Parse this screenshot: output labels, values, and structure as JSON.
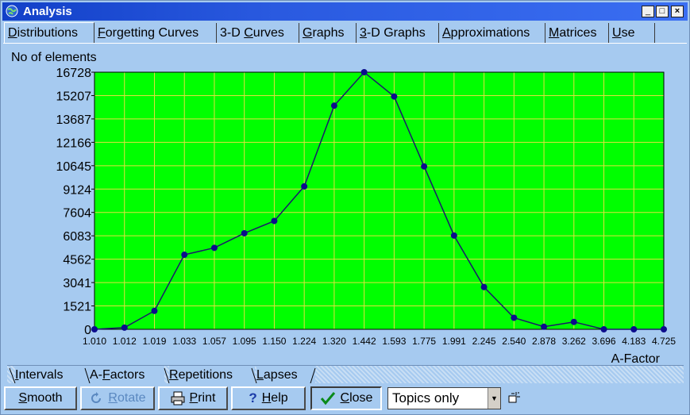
{
  "window": {
    "title": "Analysis",
    "controls": {
      "minimize": "_",
      "maximize": "□",
      "close": "×"
    }
  },
  "tabs": [
    {
      "pre": "",
      "u": "D",
      "post": "istributions",
      "active": true
    },
    {
      "pre": "",
      "u": "F",
      "post": "orgetting Curves",
      "active": false
    },
    {
      "pre": "3-D ",
      "u": "C",
      "post": "urves",
      "active": false
    },
    {
      "pre": "",
      "u": "G",
      "post": "raphs",
      "active": false
    },
    {
      "pre": "",
      "u": "3",
      "post": "-D Graphs",
      "active": false
    },
    {
      "pre": "",
      "u": "A",
      "post": "pproximations",
      "active": false
    },
    {
      "pre": "",
      "u": "M",
      "post": "atrices",
      "active": false
    },
    {
      "pre": "",
      "u": "U",
      "post": "se",
      "active": false
    }
  ],
  "chart_data": {
    "type": "line",
    "title": "",
    "ylabel": "No of elements",
    "xlabel": "A-Factor",
    "categories": [
      "1.010",
      "1.012",
      "1.019",
      "1.033",
      "1.057",
      "1.095",
      "1.150",
      "1.224",
      "1.320",
      "1.442",
      "1.593",
      "1.775",
      "1.991",
      "2.245",
      "2.540",
      "2.878",
      "3.262",
      "3.696",
      "4.183",
      "4.725"
    ],
    "yticks": [
      "0",
      "1521",
      "3041",
      "4562",
      "6083",
      "7604",
      "9124",
      "10645",
      "12166",
      "13687",
      "15207",
      "16728"
    ],
    "ylim": [
      0,
      16728
    ],
    "grid": true,
    "plot_background": "#00ff00",
    "grid_color": "#e0e040",
    "line_color": "#1a1a6a",
    "marker_color": "#0c0c8c",
    "series": [
      {
        "values": [
          0,
          110,
          1200,
          4850,
          5300,
          6250,
          7050,
          9300,
          14550,
          16728,
          15150,
          10600,
          6100,
          2750,
          750,
          170,
          480,
          0,
          0,
          0
        ]
      }
    ]
  },
  "bottom_tabs": [
    {
      "pre": "",
      "u": "I",
      "post": "ntervals",
      "active": false
    },
    {
      "pre": "A-",
      "u": "F",
      "post": "actors",
      "active": true
    },
    {
      "pre": "",
      "u": "R",
      "post": "epetitions",
      "active": false
    },
    {
      "pre": "",
      "u": "L",
      "post": "apses",
      "active": false
    }
  ],
  "toolbar": {
    "smooth": {
      "u": "S",
      "post": "mooth"
    },
    "rotate": {
      "u": "R",
      "post": "otate"
    },
    "print": {
      "u": "P",
      "post": "rint"
    },
    "help": {
      "u": "H",
      "post": "elp"
    },
    "close": {
      "u": "C",
      "post": "lose"
    }
  },
  "filter_select": {
    "value": "Topics only"
  }
}
